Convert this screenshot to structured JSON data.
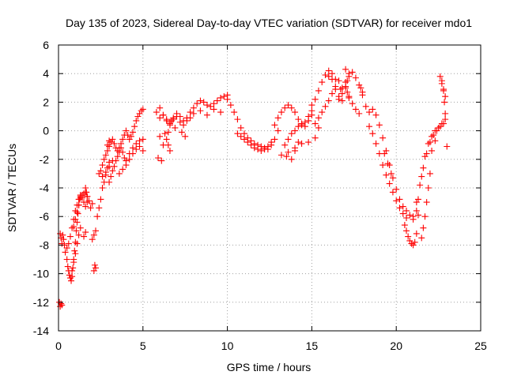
{
  "chart_data": {
    "type": "scatter",
    "title": "Day 135 of 2023, Sidereal Day-to-day VTEC variation (SDTVAR) for receiver mdo1",
    "xlabel": "GPS time / hours",
    "ylabel": "SDTVAR / TECUs",
    "xlim": [
      0,
      25
    ],
    "ylim": [
      -14,
      6
    ],
    "xticks": [
      0,
      5,
      10,
      15,
      20,
      25
    ],
    "yticks": [
      -14,
      -12,
      -10,
      -8,
      -6,
      -4,
      -2,
      0,
      2,
      4,
      6
    ],
    "xtick_labels": [
      "0",
      "5",
      "10",
      "15",
      "20",
      "25"
    ],
    "ytick_labels": [
      "-14",
      "-12",
      "-10",
      "-8",
      "-6",
      "-4",
      "-2",
      "0",
      "2",
      "4",
      "6"
    ],
    "grid": true,
    "marker": "+",
    "color": "#ff0000",
    "series": [
      {
        "name": "mdo1",
        "x": [
          0.05,
          0.1,
          0.15,
          0.2,
          0.1,
          0.15,
          0.2,
          0.25,
          0.3,
          0.35,
          0.4,
          0.5,
          0.55,
          0.6,
          0.65,
          0.7,
          0.75,
          0.8,
          0.85,
          0.9,
          0.95,
          1.0,
          1.05,
          1.1,
          1.15,
          1.2,
          1.25,
          1.3,
          0.5,
          0.6,
          0.7,
          0.8,
          0.9,
          1.0,
          1.1,
          1.2,
          1.3,
          1.4,
          1.5,
          1.6,
          1.7,
          1.8,
          1.9,
          2.0,
          0.8,
          0.9,
          1.0,
          1.1,
          1.2,
          1.3,
          0.9,
          1.0,
          1.1,
          1.2,
          1.3,
          1.4,
          1.5,
          1.6,
          1.7,
          1.6,
          1.65,
          1.7,
          2.1,
          2.15,
          2.2,
          2.0,
          2.1,
          2.2,
          2.3,
          2.4,
          2.5,
          2.6,
          2.7,
          2.8,
          2.9,
          3.0,
          2.4,
          2.5,
          2.6,
          2.7,
          2.8,
          2.9,
          3.0,
          3.1,
          3.2,
          3.3,
          3.4,
          3.5,
          3.6,
          3.7,
          3.8,
          3.9,
          4.0,
          4.1,
          4.2,
          4.3,
          4.4,
          4.5,
          4.6,
          4.7,
          4.8,
          4.9,
          5.0,
          3.0,
          3.1,
          3.2,
          3.3,
          3.4,
          3.5,
          3.6,
          3.7,
          3.8,
          3.9,
          4.0,
          4.2,
          4.4,
          4.6,
          4.8,
          5.0,
          3.6,
          3.8,
          4.0,
          4.2,
          4.4,
          4.6,
          4.8,
          5.0,
          2.6,
          2.8,
          3.0,
          3.2,
          1.5,
          1.6,
          2.9,
          3.0,
          5.8,
          6.0,
          6.2,
          6.4,
          6.6,
          6.8,
          7.0,
          7.2,
          7.4,
          7.6,
          7.8,
          8.0,
          8.2,
          8.4,
          8.6,
          8.8,
          9.0,
          9.2,
          9.4,
          9.6,
          9.8,
          10.0,
          6.0,
          6.2,
          6.4,
          6.6,
          6.8,
          7.0,
          7.2,
          7.4,
          7.6,
          7.8,
          8.0,
          8.4,
          8.8,
          9.2,
          9.6,
          6.3,
          6.4,
          6.5,
          6.6,
          6.5,
          6.6,
          6.7,
          6.9,
          6.0,
          6.2,
          5.9,
          6.1,
          7.3,
          7.5,
          10.0,
          10.2,
          10.4,
          10.6,
          10.8,
          11.0,
          11.2,
          11.4,
          11.6,
          11.8,
          12.0,
          12.2,
          12.4,
          12.6,
          12.8,
          13.0,
          11.0,
          11.2,
          11.4,
          11.6,
          11.8,
          12.0,
          12.2,
          12.4,
          12.6,
          10.6,
          10.8,
          12.8,
          13.0,
          13.2,
          13.4,
          13.6,
          13.8,
          14.0,
          14.2,
          14.4,
          14.6,
          14.8,
          15.0,
          13.4,
          13.6,
          13.8,
          14.0,
          14.2,
          14.4,
          14.6,
          14.8,
          15.0,
          13.2,
          13.5,
          13.8,
          14.0,
          14.2,
          13.6,
          14.0,
          14.4,
          14.8,
          15.2,
          15.0,
          15.2,
          15.4,
          15.6,
          15.8,
          16.0,
          16.2,
          16.4,
          16.6,
          16.8,
          15.4,
          15.6,
          15.8,
          16.0,
          16.2,
          16.4,
          16.6,
          16.0,
          16.2,
          16.4,
          15.2,
          15.4,
          16.7,
          16.8,
          17.0,
          17.2,
          17.4,
          17.6,
          17.8,
          18.0,
          16.6,
          16.8,
          17.0,
          17.2,
          17.4,
          17.6,
          17.8,
          17.0,
          17.2,
          17.1,
          17.0,
          17.1,
          17.2,
          17.9,
          18.0,
          18.2,
          18.4,
          18.6,
          18.8,
          19.0,
          19.2,
          19.4,
          19.6,
          19.8,
          20.0,
          20.2,
          20.4,
          20.6,
          20.8,
          21.0,
          18.4,
          18.6,
          18.8,
          19.0,
          19.2,
          19.4,
          19.6,
          19.8,
          20.0,
          20.2,
          20.4,
          20.6,
          19.3,
          19.5,
          19.7,
          20.5,
          20.6,
          20.7,
          20.8,
          20.9,
          21.0,
          21.1,
          21.2,
          21.0,
          21.2,
          21.4,
          21.6,
          21.8,
          22.0,
          22.2,
          22.4,
          22.6,
          22.8,
          21.3,
          21.5,
          21.7,
          21.9,
          22.1,
          22.3,
          22.5,
          22.7,
          22.9,
          21.5,
          21.6,
          21.7,
          21.8,
          21.9,
          22.0,
          22.6,
          22.7,
          22.8,
          22.9,
          22.7,
          22.8,
          22.85,
          22.9,
          23.0,
          21.2,
          21.3,
          22.1,
          22.3
        ],
        "y": [
          -12.0,
          -12.3,
          -12.1,
          -12.2,
          -7.2,
          -7.5,
          -7.9,
          -7.3,
          -7.6,
          -8.0,
          -8.5,
          -9.0,
          -9.5,
          -9.8,
          -10.1,
          -10.3,
          -10.5,
          -10.2,
          -9.6,
          -9.0,
          -8.4,
          -7.8,
          -7.0,
          -6.4,
          -5.8,
          -5.2,
          -4.8,
          -4.6,
          -8.2,
          -7.9,
          -7.4,
          -6.8,
          -6.2,
          -5.6,
          -5.2,
          -4.8,
          -4.5,
          -4.7,
          -4.4,
          -4.3,
          -4.6,
          -4.9,
          -5.4,
          -5.1,
          -9.8,
          -9.2,
          -8.6,
          -7.9,
          -7.3,
          -6.8,
          -6.7,
          -6.2,
          -5.7,
          -5.2,
          -4.7,
          -4.5,
          -5.0,
          -5.3,
          -5.0,
          -4.0,
          -4.3,
          -4.6,
          -9.8,
          -9.4,
          -9.6,
          -7.6,
          -7.3,
          -7.0,
          -6.0,
          -5.4,
          -4.8,
          -4.0,
          -3.6,
          -3.1,
          -2.6,
          -2.2,
          -3.0,
          -2.8,
          -2.4,
          -2.0,
          -1.7,
          -1.4,
          -1.1,
          -0.8,
          -0.6,
          -0.9,
          -1.2,
          -1.4,
          -1.2,
          -0.9,
          -0.6,
          -0.3,
          0.0,
          -0.3,
          -0.6,
          -0.4,
          -0.1,
          0.3,
          0.7,
          1.0,
          1.2,
          1.4,
          1.5,
          -3.6,
          -3.2,
          -2.8,
          -2.5,
          -2.1,
          -1.8,
          -1.5,
          -1.2,
          -1.5,
          -1.9,
          -2.1,
          -1.6,
          -1.2,
          -0.9,
          -0.7,
          -0.6,
          -3.0,
          -2.7,
          -2.4,
          -2.0,
          -1.6,
          -1.3,
          -1.1,
          -1.4,
          -3.2,
          -2.9,
          -2.5,
          -2.1,
          -7.4,
          -7.1,
          -1.0,
          -0.7,
          1.3,
          1.6,
          1.1,
          0.8,
          0.6,
          0.9,
          1.2,
          1.0,
          0.7,
          0.9,
          1.3,
          1.6,
          1.9,
          2.1,
          2.0,
          1.8,
          1.7,
          1.9,
          2.1,
          2.3,
          2.4,
          2.5,
          0.9,
          1.1,
          0.7,
          0.5,
          0.8,
          1.0,
          0.6,
          0.4,
          0.7,
          0.9,
          1.2,
          1.4,
          1.1,
          1.5,
          1.3,
          -0.2,
          -0.6,
          -1.0,
          -1.4,
          -0.1,
          0.4,
          0.7,
          0.2,
          -0.4,
          -1.0,
          -1.9,
          -2.1,
          -0.1,
          -0.4,
          2.2,
          1.8,
          1.3,
          0.8,
          0.2,
          -0.2,
          -0.5,
          -0.7,
          -0.9,
          -1.0,
          -1.1,
          -1.2,
          -1.3,
          -1.0,
          -0.6,
          0.0,
          -0.6,
          -0.8,
          -1.0,
          -1.2,
          -1.3,
          -1.4,
          -1.3,
          -1.1,
          -0.8,
          -0.2,
          -0.4,
          0.4,
          0.9,
          1.3,
          1.6,
          1.8,
          1.6,
          1.3,
          0.8,
          0.4,
          0.6,
          1.0,
          1.4,
          -1.0,
          -0.6,
          -0.2,
          0.0,
          0.3,
          0.5,
          0.3,
          0.7,
          1.1,
          -1.7,
          -1.8,
          -2.0,
          -1.4,
          -0.8,
          -1.5,
          -1.2,
          -0.9,
          -0.8,
          -0.5,
          1.8,
          2.2,
          2.8,
          3.4,
          3.9,
          4.2,
          3.6,
          2.9,
          2.4,
          2.1,
          0.9,
          1.3,
          1.7,
          2.1,
          2.6,
          3.1,
          3.5,
          3.8,
          4.0,
          3.6,
          0.5,
          0.2,
          2.9,
          3.0,
          3.4,
          3.8,
          4.1,
          3.7,
          3.2,
          2.7,
          2.2,
          2.6,
          3.0,
          2.4,
          1.9,
          1.5,
          1.2,
          4.3,
          4.0,
          3.5,
          3.1,
          2.7,
          2.3,
          3.0,
          2.5,
          1.7,
          1.3,
          1.5,
          1.1,
          0.4,
          -0.5,
          -1.4,
          -2.4,
          -3.3,
          -4.1,
          -4.8,
          -5.3,
          -5.6,
          -5.9,
          -6.2,
          0.3,
          -0.2,
          -0.9,
          -1.6,
          -2.4,
          -3.1,
          -3.7,
          -4.3,
          -4.9,
          -5.4,
          -5.8,
          -6.1,
          -1.6,
          -2.3,
          -3.0,
          -6.6,
          -7.0,
          -7.4,
          -7.7,
          -7.9,
          -8.0,
          -7.8,
          -7.2,
          -6.0,
          -5.0,
          -3.8,
          -2.6,
          -1.6,
          -0.8,
          -0.3,
          0.0,
          0.3,
          0.5,
          -4.8,
          -3.2,
          -1.8,
          -0.9,
          -0.4,
          0.0,
          0.2,
          0.5,
          0.8,
          -7.5,
          -6.8,
          -6.0,
          -5.0,
          -4.0,
          -3.0,
          3.8,
          3.3,
          2.8,
          2.4,
          3.5,
          2.9,
          2.0,
          1.2,
          -1.1,
          -5.6,
          -5.9,
          -1.4,
          -0.7
        ]
      }
    ]
  }
}
